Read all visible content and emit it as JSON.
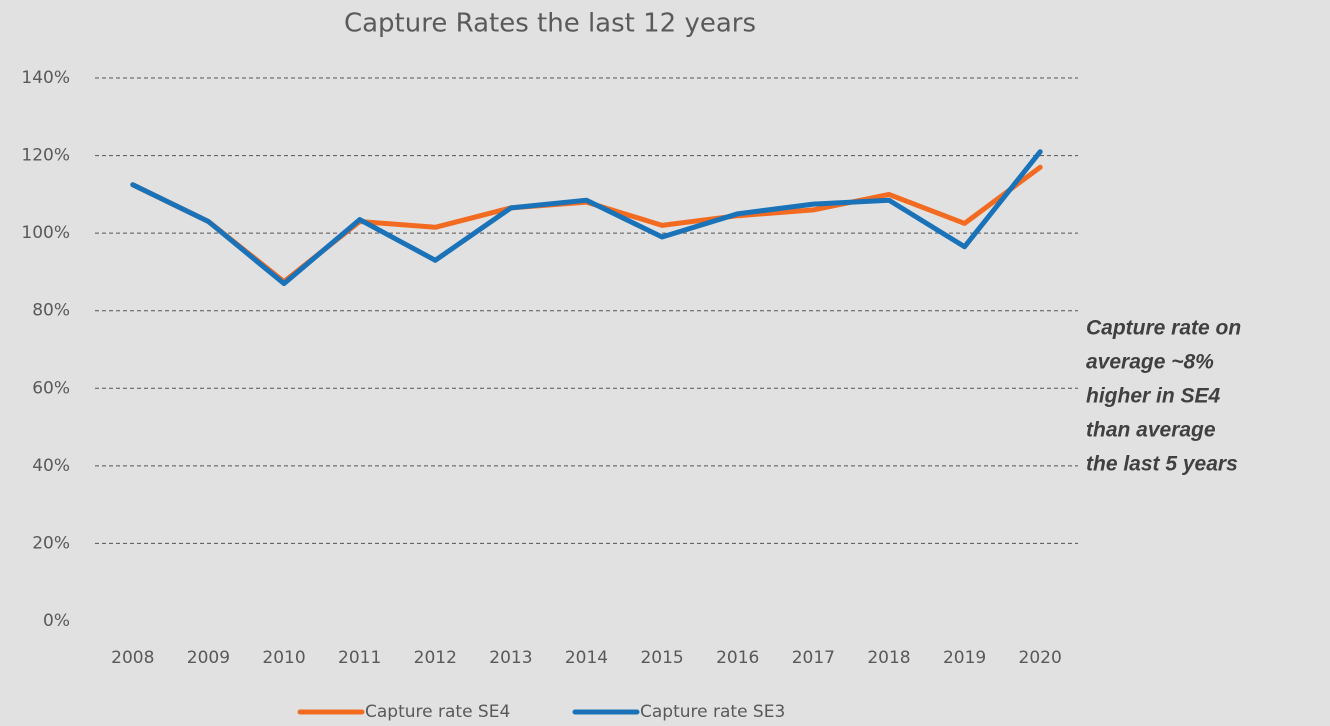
{
  "chart_data": {
    "type": "line",
    "title": "Capture Rates the last 12 years",
    "categories": [
      "2008",
      "2009",
      "2010",
      "2011",
      "2012",
      "2013",
      "2014",
      "2015",
      "2016",
      "2017",
      "2018",
      "2019",
      "2020"
    ],
    "series": [
      {
        "name": "Capture rate SE4",
        "color": "#f26b21",
        "values": [
          112.5,
          103,
          87.5,
          103,
          101.5,
          106.5,
          108,
          102,
          104.5,
          106,
          110,
          102.5,
          117
        ]
      },
      {
        "name": "Capture rate SE3",
        "color": "#1a72b8",
        "values": [
          112.5,
          103,
          87,
          103.5,
          93,
          106.5,
          108.5,
          99,
          105,
          107.5,
          108.5,
          96.5,
          121
        ]
      }
    ],
    "ylim": [
      0,
      140
    ],
    "yticks": [
      {
        "value": 0,
        "label": "0%"
      },
      {
        "value": 20,
        "label": "20%"
      },
      {
        "value": 40,
        "label": "40%"
      },
      {
        "value": 60,
        "label": "60%"
      },
      {
        "value": 80,
        "label": "80%"
      },
      {
        "value": 100,
        "label": "100%"
      },
      {
        "value": 120,
        "label": "120%"
      },
      {
        "value": 140,
        "label": "140%"
      }
    ],
    "grid": true,
    "legend": "bottom",
    "annotation": [
      "Capture rate on",
      "average ~8%",
      "higher in SE4",
      "than average",
      "the last 5 years"
    ]
  }
}
